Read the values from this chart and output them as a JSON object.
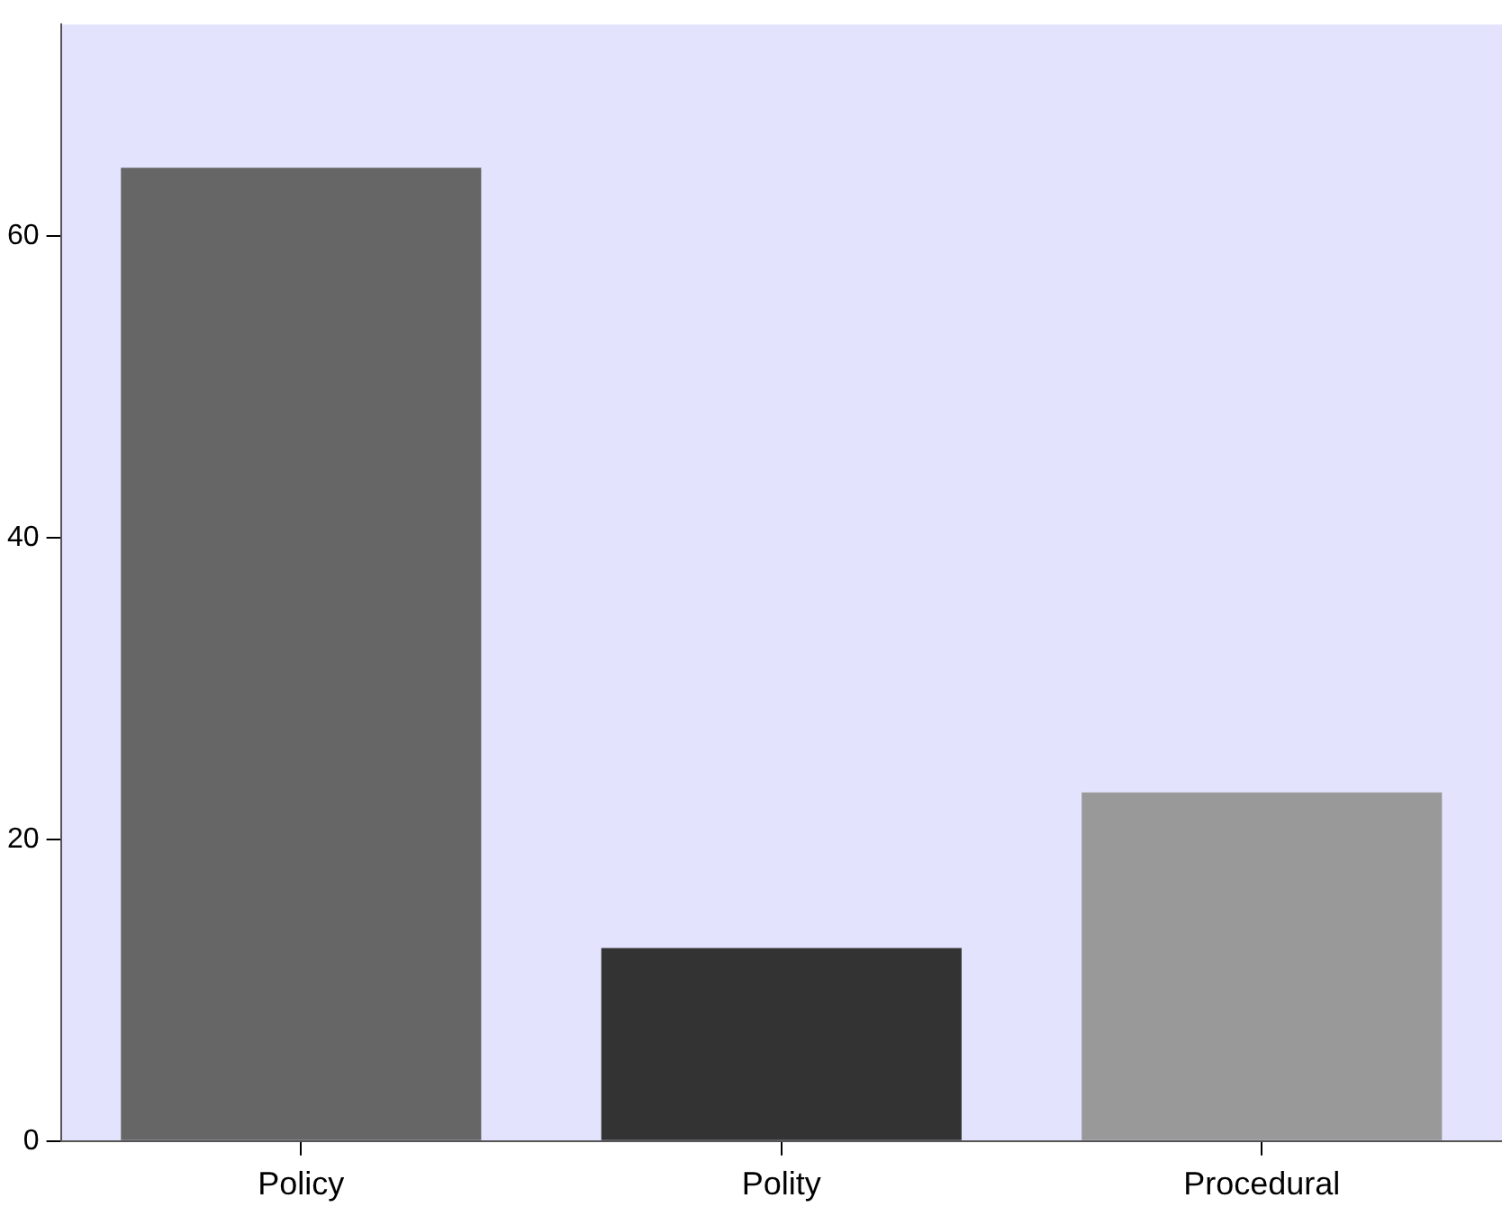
{
  "chart_data": {
    "type": "bar",
    "categories": [
      "Policy",
      "Polity",
      "Procedural"
    ],
    "values": [
      64.5,
      12.8,
      23.1
    ],
    "colors": [
      "#666666",
      "#333333",
      "#999999"
    ],
    "ylim": [
      0,
      74
    ],
    "yticks": [
      0,
      20,
      40,
      60
    ],
    "grid": false,
    "legend": false
  }
}
